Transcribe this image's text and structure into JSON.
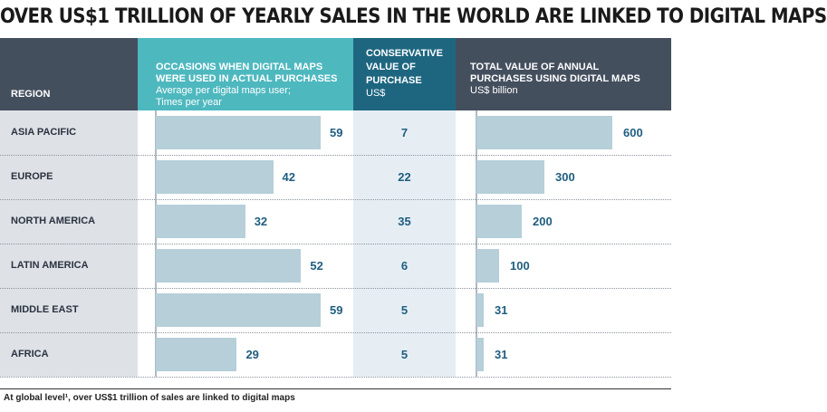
{
  "title": "OVER US$1 TRILLION OF YEARLY SALES IN THE WORLD ARE LINKED TO DIGITAL MAPS",
  "headers": {
    "region": "REGION",
    "occasions": "OCCASIONS WHEN DIGITAL MAPS WERE USED IN ACTUAL PURCHASES",
    "occasions_sub": "Average per digital maps user; Times per year",
    "conservative": "CONSERVATIVE VALUE OF PURCHASE",
    "conservative_sub": "US$",
    "total": "TOTAL VALUE OF ANNUAL PURCHASES USING DIGITAL MAPS",
    "total_sub": "US$ billion"
  },
  "footer": "At global level¹, over US$1 trillion of sales are linked to digital maps",
  "colors": {
    "region_header": "#444f5e",
    "occasions_header": "#4eb8bf",
    "conservative_header": "#1e6680",
    "bar": "#b6cfd9",
    "value_text": "#1f5e80"
  },
  "chart_data": {
    "type": "bar",
    "orientation": "horizontal",
    "categories": [
      "ASIA PACIFIC",
      "EUROPE",
      "NORTH AMERICA",
      "LATIN AMERICA",
      "MIDDLE EAST",
      "AFRICA"
    ],
    "series": [
      {
        "name": "OCCASIONS WHEN DIGITAL MAPS WERE USED IN ACTUAL PURCHASES",
        "values": [
          59,
          42,
          32,
          52,
          59,
          29
        ]
      },
      {
        "name": "CONSERVATIVE VALUE OF PURCHASE",
        "values": [
          7,
          22,
          35,
          6,
          5,
          5
        ]
      },
      {
        "name": "TOTAL VALUE OF ANNUAL PURCHASES USING DIGITAL MAPS",
        "values": [
          600,
          300,
          200,
          100,
          31,
          31
        ]
      }
    ],
    "value_labels": {
      "occasions": [
        "59",
        "42",
        "32",
        "52",
        "59",
        "29"
      ],
      "conservative": [
        "7",
        "22",
        "35",
        "6",
        "5",
        "5"
      ],
      "total": [
        "600",
        "300",
        "200",
        "100",
        "31",
        "31"
      ]
    },
    "grid": false
  }
}
